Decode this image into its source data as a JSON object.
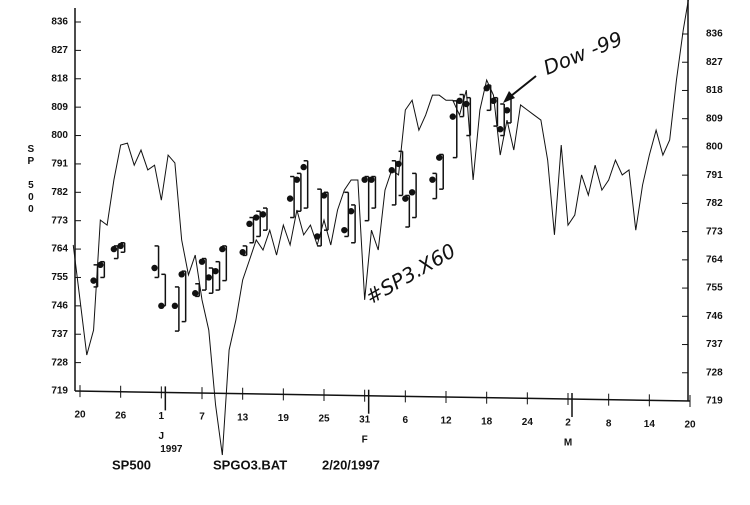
{
  "chart_data": {
    "type": "line",
    "y_label": "SP 500",
    "footer": [
      "SP500",
      "SPGO3.BAT",
      "2/20/1997"
    ],
    "annotations": [
      "Dow -99",
      "#SP3.X60"
    ],
    "xlim": [
      0,
      90
    ],
    "xticks": [
      {
        "value": 0,
        "label": "20"
      },
      {
        "value": 6,
        "label": "26"
      },
      {
        "value": 12,
        "label": "1"
      },
      {
        "value": 18,
        "label": "7"
      },
      {
        "value": 24,
        "label": "13"
      },
      {
        "value": 30,
        "label": "19"
      },
      {
        "value": 36,
        "label": "25"
      },
      {
        "value": 42,
        "label": "31"
      },
      {
        "value": 48,
        "label": "6"
      },
      {
        "value": 54,
        "label": "12"
      },
      {
        "value": 60,
        "label": "18"
      },
      {
        "value": 66,
        "label": "24"
      },
      {
        "value": 72,
        "label": "2"
      },
      {
        "value": 78,
        "label": "8"
      },
      {
        "value": 84,
        "label": "14"
      },
      {
        "value": 90,
        "label": "20"
      }
    ],
    "month_labels": [
      {
        "value": 12,
        "label": "J"
      },
      {
        "value": 42,
        "label": "F"
      },
      {
        "value": 72,
        "label": "M"
      }
    ],
    "year_label": {
      "value": 12,
      "label": "1997"
    },
    "ylim": [
      719,
      836
    ],
    "yticks": [
      719,
      728,
      737,
      746,
      755,
      764,
      773,
      782,
      791,
      800,
      809,
      818,
      827,
      836
    ],
    "y2lim": [
      719,
      836
    ],
    "y2ticks": [
      719,
      728,
      737,
      746,
      755,
      764,
      773,
      782,
      791,
      800,
      809,
      818,
      827,
      836
    ],
    "line": {
      "color": "#111",
      "x": [
        -1,
        0,
        1,
        2,
        3,
        4,
        5,
        6,
        7,
        8,
        9,
        10,
        11,
        12,
        13,
        14,
        15,
        16,
        17,
        18,
        19,
        20,
        21,
        22,
        23,
        24,
        25,
        26,
        27,
        28,
        29,
        30,
        31,
        32,
        33,
        34,
        35,
        36,
        37,
        38,
        39,
        40,
        41,
        42,
        43,
        44,
        45,
        46,
        47,
        48,
        49,
        50,
        51,
        52,
        53,
        54,
        55,
        56,
        57,
        58,
        59,
        60,
        61,
        62,
        63,
        64,
        65,
        66,
        67,
        68,
        69,
        70,
        71,
        72,
        73,
        74,
        75,
        76,
        77,
        78,
        79,
        80,
        81,
        82,
        83,
        84,
        85,
        86,
        87,
        88,
        89,
        90
      ],
      "values": [
        765.3,
        747.9,
        730.4,
        738.3,
        773.2,
        771.6,
        785.9,
        797.0,
        797.6,
        790.6,
        795.4,
        789.1,
        790.6,
        779.5,
        793.8,
        791.3,
        766.9,
        755.8,
        762.1,
        747.9,
        738.3,
        714.6,
        698.7,
        732.0,
        741.5,
        754.2,
        760.5,
        766.9,
        763.7,
        770.0,
        762.1,
        771.6,
        765.3,
        776.4,
        768.5,
        771.6,
        765.3,
        773.2,
        765.3,
        776.4,
        782.7,
        785.9,
        785.9,
        747.9,
        770.0,
        763.7,
        782.7,
        789.1,
        787.5,
        808.1,
        811.2,
        801.7,
        806.5,
        812.8,
        812.8,
        811.2,
        811.2,
        806.5,
        814.4,
        785.9,
        808.1,
        817.6,
        812.8,
        793.8,
        804.9,
        795.4,
        809.7,
        808.1,
        806.5,
        804.9,
        792.2,
        768.5,
        797.0,
        771.6,
        774.8,
        787.5,
        781.1,
        790.6,
        782.7,
        785.9,
        792.2,
        787.5,
        789.1,
        770.0,
        784.3,
        793.8,
        801.7,
        793.8,
        798.6,
        817.6,
        833.4,
        846.1
      ]
    },
    "bars": {
      "color": "#111",
      "x": [
        2,
        3,
        5,
        6,
        11,
        12,
        14,
        15,
        17,
        18,
        19,
        20,
        21,
        24,
        25,
        26,
        27,
        31,
        32,
        33,
        35,
        36,
        39,
        40,
        42,
        43,
        46,
        47,
        48,
        49,
        52,
        53,
        55,
        56,
        57,
        60,
        61,
        62,
        63
      ],
      "high": [
        759,
        760,
        765,
        766,
        765,
        756,
        752,
        757,
        753,
        761,
        758,
        760,
        765,
        765,
        774,
        776,
        777,
        787,
        788,
        792,
        783,
        782,
        782,
        778,
        787,
        787,
        792,
        795,
        781,
        788,
        788,
        794,
        811,
        813,
        812,
        816,
        812,
        810,
        812
      ],
      "low": [
        752,
        755,
        761,
        763,
        755,
        746,
        738,
        741,
        749,
        751,
        750,
        751,
        754,
        762,
        766,
        768,
        770,
        774,
        776,
        777,
        765,
        770,
        768,
        766,
        773,
        777,
        778,
        781,
        771,
        774,
        780,
        783,
        793,
        806,
        800,
        808,
        803,
        800,
        804
      ],
      "close": [
        754,
        759,
        764,
        765,
        758,
        746,
        746,
        756,
        750,
        760,
        755,
        757,
        764,
        763,
        772,
        774,
        775,
        780,
        786,
        790,
        768,
        781,
        770,
        776,
        786,
        786,
        789,
        791,
        780,
        782,
        786,
        793,
        806,
        811,
        810,
        815,
        811,
        802,
        808
      ]
    }
  }
}
